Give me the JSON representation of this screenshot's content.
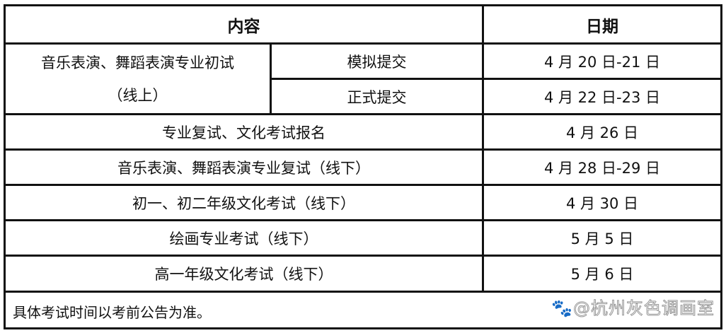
{
  "header": {
    "content": "内容",
    "date": "日期"
  },
  "rows": [
    {
      "content": "音乐表演、舞蹈表演专业初试",
      "content_line2": "（线上）",
      "sub": [
        {
          "label": "模拟提交",
          "date": "4 月 20 日-21 日"
        },
        {
          "label": "正式提交",
          "date": "4 月 22 日-23 日"
        }
      ]
    },
    {
      "content": "专业复试、文化考试报名",
      "date": "4 月 26 日"
    },
    {
      "content": "音乐表演、舞蹈表演专业复试（线下）",
      "date": "4 月 28 日-29 日"
    },
    {
      "content": "初一、初二年级文化考试（线下）",
      "date": "4 月 30 日"
    },
    {
      "content": "绘画专业考试（线下）",
      "date": "5 月 5 日"
    },
    {
      "content": "高一年级文化考试（线下）",
      "date": "5 月 6 日"
    }
  ],
  "footnote": "具体考试时间以考前公告为准。",
  "watermark": "@杭州灰色调画室",
  "watermark_icon": "baidu-paw-icon"
}
